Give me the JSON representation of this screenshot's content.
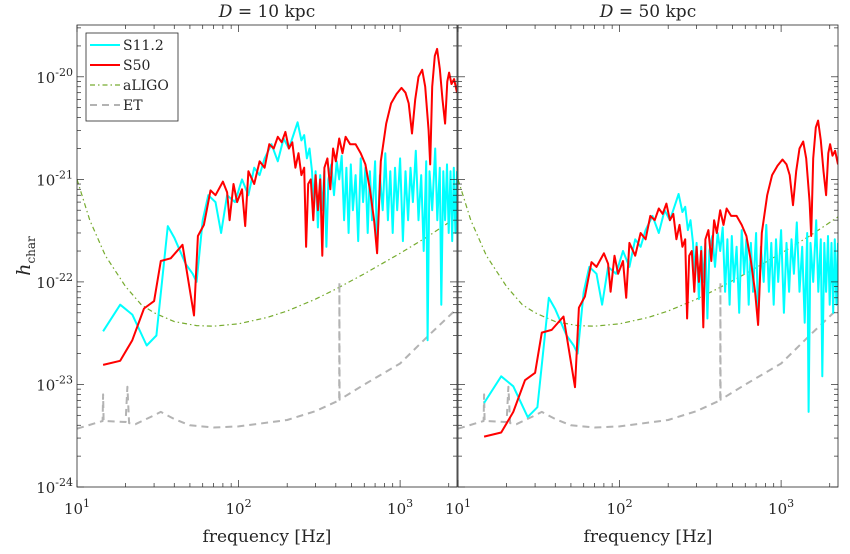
{
  "chart_data": [
    {
      "type": "line",
      "title": "D = 10 kpc",
      "title_parts": {
        "var": "D",
        "rest": " = 10 kpc"
      },
      "distance_kpc": 10,
      "xlabel": "frequency  [Hz]",
      "ylabel": "h",
      "ylabel_sub": "char",
      "xscale": "log",
      "yscale": "log",
      "xlim": [
        10,
        2250
      ],
      "ylim": [
        1e-24,
        3.2e-20
      ],
      "xticks": [
        {
          "base": "10",
          "exp": "1",
          "v": 10
        },
        {
          "base": "10",
          "exp": "2",
          "v": 100
        },
        {
          "base": "10",
          "exp": "3",
          "v": 1000
        }
      ],
      "yticks": [
        {
          "base": "10",
          "exp": "-20",
          "v": 1e-20
        },
        {
          "base": "10",
          "exp": "-21",
          "v": 1e-21
        },
        {
          "base": "10",
          "exp": "-22",
          "v": 1e-22
        },
        {
          "base": "10",
          "exp": "-23",
          "v": 1e-23
        },
        {
          "base": "10",
          "exp": "-24",
          "v": 1e-24
        }
      ],
      "legend": "top-left",
      "grid": false
    },
    {
      "type": "line",
      "title": "D = 50 kpc",
      "title_parts": {
        "var": "D",
        "rest": " = 50 kpc"
      },
      "distance_kpc": 50,
      "xlabel": "frequency  [Hz]",
      "xscale": "log",
      "yscale": "log",
      "xlim": [
        10,
        2250
      ],
      "ylim": [
        1e-24,
        3.2e-20
      ],
      "xticks": [
        {
          "base": "10",
          "exp": "1",
          "v": 10
        },
        {
          "base": "10",
          "exp": "2",
          "v": 100
        },
        {
          "base": "10",
          "exp": "3",
          "v": 1000
        }
      ],
      "grid": false
    }
  ],
  "source_series": {
    "reference_distance_kpc": 10,
    "signals": [
      {
        "name": "S11.2",
        "color": "#00FFFF",
        "style": "solid",
        "points": [
          [
            14.5,
            3.3e-23
          ],
          [
            18.5,
            6e-23
          ],
          [
            22,
            4.8e-23
          ],
          [
            27,
            2.4e-23
          ],
          [
            31,
            3e-23
          ],
          [
            36.5,
            3.5e-22
          ],
          [
            40,
            2.7e-22
          ],
          [
            47,
            1.5e-22
          ],
          [
            52,
            1.2e-22
          ],
          [
            55,
            1e-22
          ],
          [
            60,
            4e-22
          ],
          [
            65,
            7e-22
          ],
          [
            72,
            6e-22
          ],
          [
            78,
            3e-22
          ],
          [
            85,
            7e-22
          ],
          [
            95,
            6e-22
          ],
          [
            105,
            1e-21
          ],
          [
            115,
            7e-22
          ],
          [
            125,
            1.3e-21
          ],
          [
            135,
            1.1e-21
          ],
          [
            145,
            1.6e-21
          ],
          [
            160,
            2.2e-21
          ],
          [
            175,
            1.5e-21
          ],
          [
            190,
            2.5e-21
          ],
          [
            205,
            2e-21
          ],
          [
            220,
            2.8e-21
          ],
          [
            232,
            3.6e-21
          ],
          [
            245,
            2.4e-21
          ],
          [
            255,
            2.7e-21
          ],
          [
            265,
            1.6e-21
          ],
          [
            275,
            2e-21
          ],
          [
            285,
            1.2e-21
          ],
          [
            292,
            6e-22
          ],
          [
            300,
            1.2e-21
          ],
          [
            310,
            3.4e-22
          ],
          [
            320,
            1.1e-21
          ],
          [
            330,
            5e-22
          ],
          [
            340,
            1.2e-21
          ],
          [
            350,
            2.2e-22
          ],
          [
            360,
            1e-21
          ],
          [
            375,
            1.4e-21
          ],
          [
            390,
            7e-22
          ],
          [
            405,
            1.5e-21
          ],
          [
            420,
            1e-21
          ],
          [
            435,
            1.7e-21
          ],
          [
            450,
            4e-22
          ],
          [
            465,
            1.3e-21
          ],
          [
            480,
            3e-22
          ],
          [
            495,
            1.4e-21
          ],
          [
            510,
            5e-22
          ],
          [
            530,
            1.1e-21
          ],
          [
            550,
            2.5e-22
          ],
          [
            570,
            1.6e-21
          ],
          [
            590,
            6e-22
          ],
          [
            610,
            1.3e-21
          ],
          [
            630,
            3e-22
          ],
          [
            650,
            1.2e-21
          ],
          [
            670,
            4e-22
          ],
          [
            700,
            1.5e-21
          ],
          [
            720,
            2e-22
          ],
          [
            750,
            1.1e-21
          ],
          [
            780,
            5e-22
          ],
          [
            810,
            1.8e-21
          ],
          [
            840,
            4e-22
          ],
          [
            870,
            1.2e-21
          ],
          [
            900,
            3e-22
          ],
          [
            930,
            1.3e-21
          ],
          [
            960,
            5e-22
          ],
          [
            1000,
            1.6e-21
          ],
          [
            1040,
            2.5e-22
          ],
          [
            1080,
            1.2e-21
          ],
          [
            1120,
            4e-22
          ],
          [
            1160,
            1.3e-21
          ],
          [
            1200,
            6e-22
          ],
          [
            1250,
            1.9e-21
          ],
          [
            1300,
            4e-22
          ],
          [
            1350,
            1.1e-21
          ],
          [
            1400,
            2e-22
          ],
          [
            1450,
            1.5e-21
          ],
          [
            1480,
            2.7e-23
          ],
          [
            1520,
            1.2e-21
          ],
          [
            1580,
            5e-22
          ],
          [
            1650,
            2e-21
          ],
          [
            1700,
            4e-22
          ],
          [
            1760,
            1.3e-21
          ],
          [
            1800,
            6e-23
          ],
          [
            1850,
            1.2e-21
          ],
          [
            1900,
            4e-22
          ],
          [
            1950,
            1.4e-21
          ],
          [
            2000,
            3e-22
          ],
          [
            2050,
            1.2e-21
          ],
          [
            2100,
            2.5e-22
          ],
          [
            2150,
            1.3e-21
          ],
          [
            2200,
            3e-22
          ],
          [
            2250,
            1.2e-21
          ]
        ]
      },
      {
        "name": "S50",
        "color": "#FF0000",
        "style": "solid",
        "points": [
          [
            14.5,
            1.55e-23
          ],
          [
            18.5,
            1.7e-23
          ],
          [
            22,
            2.7e-23
          ],
          [
            26,
            5.5e-23
          ],
          [
            30,
            6.5e-23
          ],
          [
            33,
            1.6e-22
          ],
          [
            38,
            1.7e-22
          ],
          [
            45,
            2.3e-22
          ],
          [
            53,
            4.7e-23
          ],
          [
            56,
            2.8e-22
          ],
          [
            61,
            3.6e-22
          ],
          [
            67,
            7.8e-22
          ],
          [
            72,
            7e-22
          ],
          [
            80,
            9.5e-22
          ],
          [
            85,
            7.5e-22
          ],
          [
            88,
            4e-22
          ],
          [
            93,
            9e-22
          ],
          [
            98,
            6e-22
          ],
          [
            105,
            8e-22
          ],
          [
            110,
            3.5e-22
          ],
          [
            115,
            1.2e-21
          ],
          [
            125,
            9e-22
          ],
          [
            135,
            1.5e-21
          ],
          [
            145,
            1.3e-21
          ],
          [
            155,
            2.2e-21
          ],
          [
            165,
            2e-21
          ],
          [
            175,
            2.6e-21
          ],
          [
            185,
            2.3e-21
          ],
          [
            195,
            2.9e-21
          ],
          [
            205,
            2e-21
          ],
          [
            215,
            2.3e-21
          ],
          [
            225,
            1.3e-21
          ],
          [
            235,
            1.8e-21
          ],
          [
            245,
            1.1e-21
          ],
          [
            255,
            1.3e-21
          ],
          [
            262,
            2.2e-22
          ],
          [
            270,
            9e-22
          ],
          [
            280,
            1e-21
          ],
          [
            290,
            4e-22
          ],
          [
            300,
            1.1e-21
          ],
          [
            310,
            5e-22
          ],
          [
            320,
            1e-21
          ],
          [
            330,
            1.8e-22
          ],
          [
            340,
            1.3e-21
          ],
          [
            355,
            1.6e-21
          ],
          [
            370,
            8e-22
          ],
          [
            385,
            2e-21
          ],
          [
            400,
            1.5e-21
          ],
          [
            420,
            2.5e-21
          ],
          [
            440,
            1.8e-21
          ],
          [
            460,
            2.6e-21
          ],
          [
            490,
            2.2e-21
          ],
          [
            530,
            2.2e-21
          ],
          [
            570,
            1.8e-21
          ],
          [
            610,
            1.4e-21
          ],
          [
            650,
            8e-22
          ],
          [
            690,
            4e-22
          ],
          [
            720,
            1.9e-22
          ],
          [
            760,
            1.5e-21
          ],
          [
            820,
            3.5e-21
          ],
          [
            880,
            5.5e-21
          ],
          [
            950,
            6.8e-21
          ],
          [
            1020,
            7.8e-21
          ],
          [
            1080,
            7e-21
          ],
          [
            1130,
            5.5e-21
          ],
          [
            1185,
            2.8e-21
          ],
          [
            1240,
            6e-21
          ],
          [
            1300,
            1e-20
          ],
          [
            1370,
            1.17e-20
          ],
          [
            1430,
            8e-21
          ],
          [
            1500,
            3e-21
          ],
          [
            1535,
            1.4e-21
          ],
          [
            1580,
            8e-21
          ],
          [
            1640,
            1.6e-20
          ],
          [
            1695,
            1.87e-20
          ],
          [
            1760,
            1.2e-20
          ],
          [
            1830,
            6e-21
          ],
          [
            1900,
            3.5e-21
          ],
          [
            1960,
            9e-21
          ],
          [
            2010,
            1.1e-20
          ],
          [
            2080,
            8.5e-21
          ],
          [
            2160,
            9.5e-21
          ],
          [
            2250,
            7e-21
          ]
        ]
      }
    ],
    "detectors": [
      {
        "name": "aLIGO",
        "color": "#77AC30",
        "style": "dashdot",
        "points": [
          [
            10,
            1e-21
          ],
          [
            12,
            4e-22
          ],
          [
            15,
            1.8e-22
          ],
          [
            20,
            9e-23
          ],
          [
            25,
            6e-23
          ],
          [
            30,
            5e-23
          ],
          [
            40,
            4.1e-23
          ],
          [
            55,
            3.75e-23
          ],
          [
            70,
            3.7e-23
          ],
          [
            100,
            3.9e-23
          ],
          [
            150,
            4.5e-23
          ],
          [
            200,
            5.2e-23
          ],
          [
            300,
            6.8e-23
          ],
          [
            400,
            8.5e-23
          ],
          [
            600,
            1.2e-22
          ],
          [
            1000,
            1.9e-22
          ],
          [
            1500,
            2.8e-22
          ],
          [
            2250,
            4.3e-22
          ]
        ]
      },
      {
        "name": "ET",
        "color": "#B3B3B3",
        "style": "dashed",
        "points": [
          [
            10,
            3.7e-24
          ],
          [
            14.4,
            4.4e-24
          ],
          [
            14.5,
            8e-24
          ],
          [
            14.6,
            4.4e-24
          ],
          [
            20,
            4.3e-24
          ],
          [
            20.5,
            9.5e-24
          ],
          [
            21,
            4.2e-24
          ],
          [
            23,
            4.1e-24
          ],
          [
            30,
            5e-24
          ],
          [
            33,
            5.4e-24
          ],
          [
            40,
            4.6e-24
          ],
          [
            50,
            4e-24
          ],
          [
            70,
            3.8e-24
          ],
          [
            100,
            3.9e-24
          ],
          [
            200,
            4.5e-24
          ],
          [
            300,
            5.5e-24
          ],
          [
            420,
            7e-24
          ],
          [
            421,
            1e-22
          ],
          [
            422,
            7.1e-24
          ],
          [
            600,
            1e-23
          ],
          [
            1000,
            1.6e-23
          ],
          [
            1500,
            3e-23
          ],
          [
            2250,
            5.5e-23
          ]
        ]
      }
    ]
  }
}
